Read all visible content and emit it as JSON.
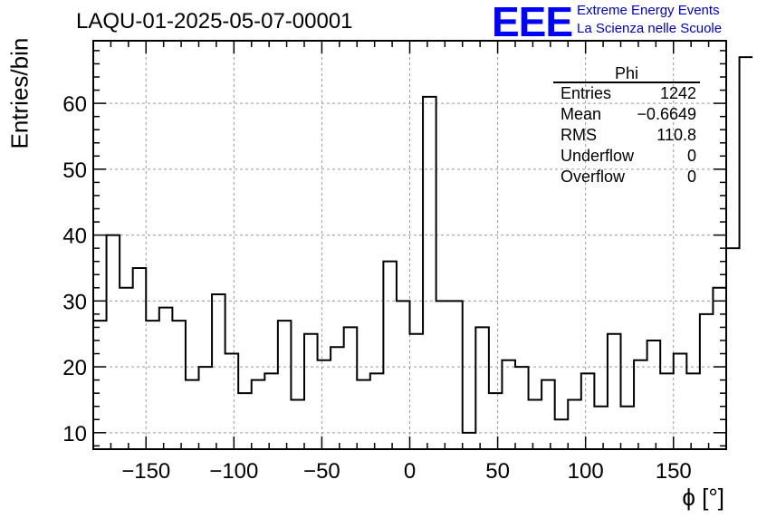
{
  "title": "LAQU-01-2025-05-07-00001",
  "logo": {
    "letters": "EEE",
    "line1": "Extreme Energy Events",
    "line2": "La Scienza nelle Scuole",
    "color": "#0000ff"
  },
  "stats_box": {
    "name": "Phi",
    "rows": [
      {
        "label": "Entries",
        "value": "1242"
      },
      {
        "label": "Mean",
        "value": "−0.6649"
      },
      {
        "label": "RMS",
        "value": "110.8"
      },
      {
        "label": "Underflow",
        "value": "0"
      },
      {
        "label": "Overflow",
        "value": "0"
      }
    ]
  },
  "chart_data": {
    "type": "histogram",
    "xlabel": "ϕ [°]",
    "ylabel": "Entries/bin",
    "xlim": [
      -180,
      180
    ],
    "ylim": [
      7.5,
      69.5
    ],
    "grid": true,
    "bin_width": 7.5,
    "x_ticks": [
      -150,
      -100,
      -50,
      0,
      50,
      100,
      150
    ],
    "x_tick_labels": [
      "−150",
      "−100",
      "−50",
      "0",
      "50",
      "100",
      "150"
    ],
    "y_ticks": [
      10,
      20,
      30,
      40,
      50,
      60
    ],
    "y_tick_labels": [
      "10",
      "20",
      "30",
      "40",
      "50",
      "60"
    ],
    "bin_edges_start": -180,
    "values": [
      27,
      40,
      32,
      35,
      27,
      29,
      27,
      18,
      20,
      31,
      22,
      16,
      18,
      19,
      27,
      15,
      25,
      21,
      23,
      26,
      18,
      19,
      36,
      30,
      25,
      61,
      30,
      30,
      10,
      26,
      16,
      21,
      20,
      15,
      18,
      12,
      15,
      19,
      14,
      25,
      14,
      21,
      24,
      19,
      22,
      19,
      28,
      32,
      38,
      67
    ],
    "line_color": "#000000"
  }
}
